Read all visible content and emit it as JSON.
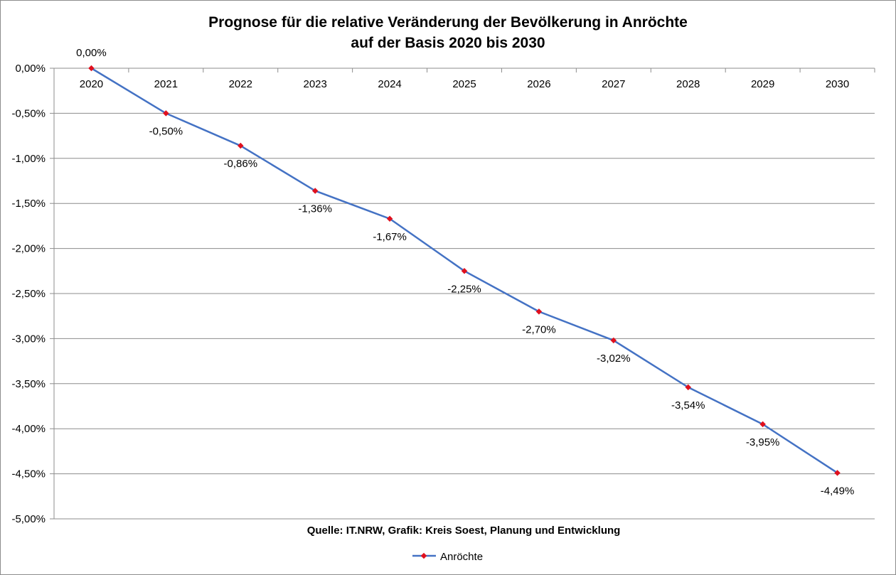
{
  "chart_data": {
    "type": "line",
    "title": [
      "Prognose für die relative Veränderung der Bevölkerung in Anröchte",
      "auf der Basis 2020 bis 2030"
    ],
    "categories": [
      "2020",
      "2021",
      "2022",
      "2023",
      "2024",
      "2025",
      "2026",
      "2027",
      "2028",
      "2029",
      "2030"
    ],
    "series": [
      {
        "name": "Anröchte",
        "values": [
          0.0,
          -0.5,
          -0.86,
          -1.36,
          -1.67,
          -2.25,
          -2.7,
          -3.02,
          -3.54,
          -3.95,
          -4.49
        ],
        "labels": [
          "0,00%",
          "-0,50%",
          "-0,86%",
          "-1,36%",
          "-1,67%",
          "-2,25%",
          "-2,70%",
          "-3,02%",
          "-3,54%",
          "-3,95%",
          "-4,49%"
        ],
        "line_color": "#4472c4",
        "marker_color": "#e0101e"
      }
    ],
    "ylim": [
      -5.0,
      0.0
    ],
    "ytick_values": [
      0.0,
      -0.5,
      -1.0,
      -1.5,
      -2.0,
      -2.5,
      -3.0,
      -3.5,
      -4.0,
      -4.5,
      -5.0
    ],
    "ytick_labels": [
      "0,00%",
      "-0,50%",
      "-1,00%",
      "-1,50%",
      "-2,00%",
      "-2,50%",
      "-3,00%",
      "-3,50%",
      "-4,00%",
      "-4,50%",
      "-5,00%"
    ],
    "xaxis_position": "top",
    "grid": true,
    "legend_position": "bottom",
    "source": "Quelle: IT.NRW, Grafik: Kreis Soest, Planung und Entwicklung"
  }
}
